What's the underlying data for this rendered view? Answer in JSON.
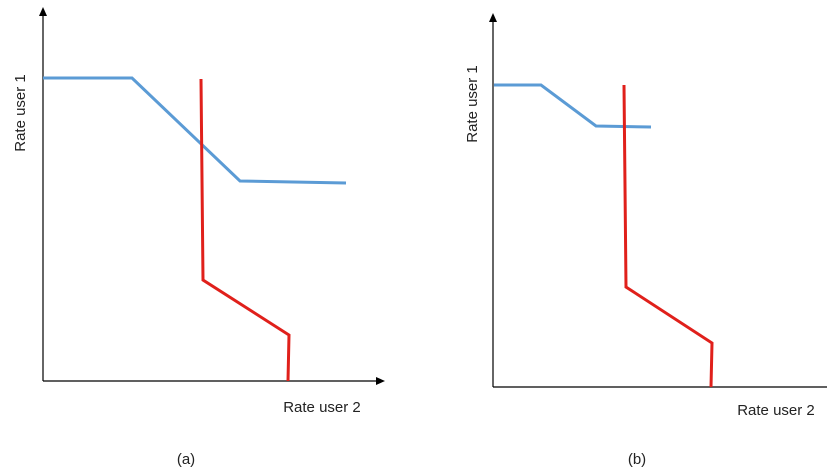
{
  "colors": {
    "user1_curve": "#5b9bd5",
    "user2_curve": "#e0201b",
    "axes": "#000000"
  },
  "panels": [
    {
      "label": "(a)",
      "y_axis_title": "Rate user 1",
      "x_axis_title": "Rate user 2"
    },
    {
      "label": "(b)",
      "y_axis_title": "Rate user 1",
      "x_axis_title": "Rate user 2"
    }
  ]
}
